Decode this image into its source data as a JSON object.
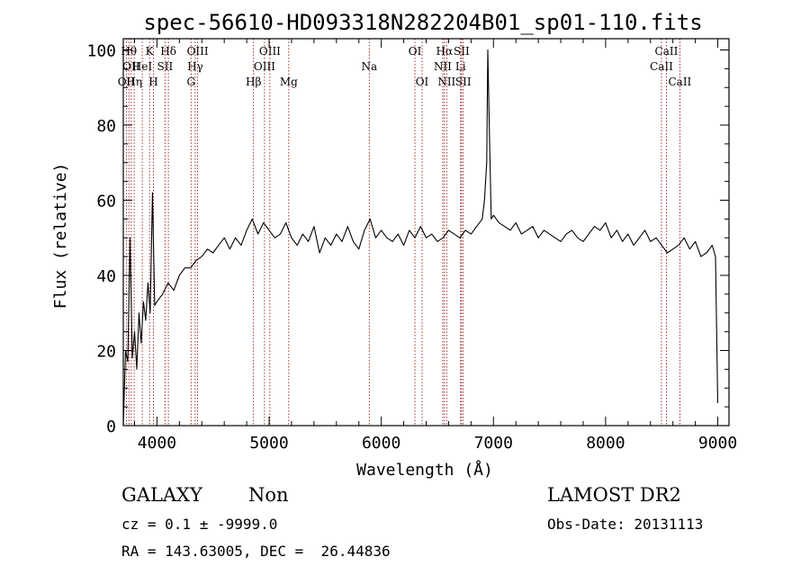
{
  "chart_data": {
    "type": "line",
    "title": "spec-56610-HD093318N282204B01_sp01-110.fits",
    "xlabel": "Wavelength (Å)",
    "ylabel": "Flux (relative)",
    "xlim": [
      3700,
      9100
    ],
    "ylim": [
      0,
      103
    ],
    "x_ticks": [
      4000,
      5000,
      6000,
      7000,
      8000,
      9000
    ],
    "y_ticks": [
      0,
      20,
      40,
      60,
      80,
      100
    ],
    "grid": false,
    "series": [
      {
        "x": [
          3700,
          3720,
          3740,
          3760,
          3780,
          3800,
          3820,
          3840,
          3860,
          3880,
          3900,
          3920,
          3940,
          3960,
          3980,
          4000,
          4050,
          4100,
          4150,
          4200,
          4250,
          4300,
          4350,
          4400,
          4450,
          4500,
          4550,
          4600,
          4650,
          4700,
          4750,
          4800,
          4850,
          4900,
          4950,
          5000,
          5050,
          5100,
          5150,
          5200,
          5250,
          5300,
          5350,
          5400,
          5450,
          5500,
          5550,
          5600,
          5650,
          5700,
          5750,
          5800,
          5850,
          5900,
          5950,
          6000,
          6050,
          6100,
          6150,
          6200,
          6250,
          6300,
          6350,
          6400,
          6450,
          6500,
          6550,
          6600,
          6650,
          6700,
          6750,
          6800,
          6850,
          6900,
          6920,
          6940,
          6950,
          6960,
          6980,
          7000,
          7050,
          7100,
          7150,
          7200,
          7250,
          7300,
          7350,
          7400,
          7450,
          7500,
          7550,
          7600,
          7650,
          7700,
          7750,
          7800,
          7850,
          7900,
          7950,
          8000,
          8050,
          8100,
          8150,
          8200,
          8250,
          8300,
          8350,
          8400,
          8450,
          8500,
          8550,
          8600,
          8650,
          8700,
          8750,
          8800,
          8850,
          8900,
          8950,
          8980,
          9000
        ],
        "y": [
          0,
          20,
          17,
          50,
          18,
          25,
          15,
          30,
          22,
          33,
          28,
          38,
          30,
          62,
          32,
          33,
          35,
          38,
          36,
          40,
          42,
          42,
          44,
          45,
          47,
          46,
          48,
          50,
          47,
          50,
          48,
          52,
          55,
          51,
          54,
          52,
          50,
          51,
          54,
          50,
          48,
          51,
          49,
          53,
          46,
          50,
          48,
          51,
          49,
          53,
          49,
          47,
          52,
          55,
          50,
          52,
          50,
          49,
          51,
          48,
          52,
          50,
          53,
          50,
          51,
          49,
          50,
          52,
          51,
          50,
          52,
          51,
          53,
          55,
          60,
          70,
          100,
          84,
          55,
          56,
          54,
          53,
          52,
          54,
          51,
          52,
          53,
          50,
          52,
          51,
          50,
          49,
          51,
          52,
          50,
          49,
          51,
          53,
          52,
          54,
          50,
          52,
          49,
          51,
          48,
          50,
          52,
          49,
          50,
          48,
          46,
          47,
          48,
          50,
          47,
          49,
          45,
          46,
          48,
          45,
          6
        ]
      }
    ],
    "line_markers": [
      {
        "wl": 3727,
        "row": 2,
        "label": "OII"
      },
      {
        "wl": 3750,
        "row": 0,
        "label": "Hθ"
      },
      {
        "wl": 3771,
        "row": 1,
        "label": "OII"
      },
      {
        "wl": 3797,
        "row": 2,
        "label": "Hη"
      },
      {
        "wl": 3869,
        "row": 1,
        "label": "HeI"
      },
      {
        "wl": 3934,
        "row": 0,
        "label": "K"
      },
      {
        "wl": 3969,
        "row": 2,
        "label": "H"
      },
      {
        "wl": 4072,
        "row": 1,
        "label": "SII"
      },
      {
        "wl": 4102,
        "row": 0,
        "label": "Hδ"
      },
      {
        "wl": 4304,
        "row": 2,
        "label": "G"
      },
      {
        "wl": 4341,
        "row": 1,
        "label": "Hγ"
      },
      {
        "wl": 4363,
        "row": 0,
        "label": "OIII"
      },
      {
        "wl": 4861,
        "row": 2,
        "label": "Hβ"
      },
      {
        "wl": 4959,
        "row": 1,
        "label": "OIII"
      },
      {
        "wl": 5007,
        "row": 0,
        "label": "OIII"
      },
      {
        "wl": 5175,
        "row": 2,
        "label": "Mg"
      },
      {
        "wl": 5893,
        "row": 1,
        "label": "Na"
      },
      {
        "wl": 6300,
        "row": 0,
        "label": "OI"
      },
      {
        "wl": 6364,
        "row": 2,
        "label": "OI"
      },
      {
        "wl": 6548,
        "row": 1,
        "label": "NII"
      },
      {
        "wl": 6563,
        "row": 0,
        "label": "Hα"
      },
      {
        "wl": 6583,
        "row": 2,
        "label": "NII"
      },
      {
        "wl": 6707,
        "row": 1,
        "label": "Li"
      },
      {
        "wl": 6716,
        "row": 0,
        "label": "SII"
      },
      {
        "wl": 6731,
        "row": 2,
        "label": "SII"
      },
      {
        "wl": 8498,
        "row": 1,
        "label": "CaII"
      },
      {
        "wl": 8542,
        "row": 0,
        "label": "CaII"
      },
      {
        "wl": 8662,
        "row": 2,
        "label": "CaII"
      }
    ]
  },
  "info": {
    "class_label": "GALAXY",
    "subclass_label": "Non",
    "survey_label": "LAMOST DR2",
    "cz_text": "cz = 0.1 ± -9999.0",
    "obsdate_text": "Obs-Date: 20131113",
    "radec_text": "RA = 143.63005, DEC =  26.44836"
  },
  "colors": {
    "spectrum": "#000000",
    "marker_line": "#8b0000",
    "axes": "#000000"
  }
}
